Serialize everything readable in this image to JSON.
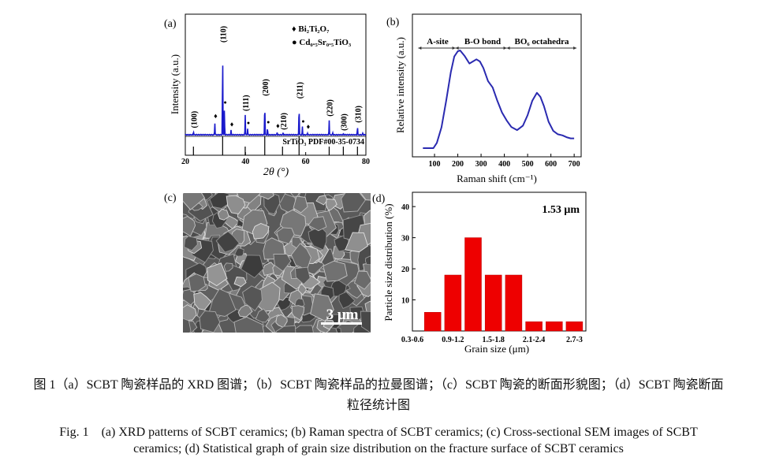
{
  "panels": {
    "a": {
      "label": "(a)",
      "ylabel": "Intensity (a.u.)",
      "xlabel": "2θ (°)",
      "legend": [
        {
          "symbol": "♦",
          "text": "Bi₂Ti₂O₇"
        },
        {
          "symbol": "●",
          "text": "Cd₀.₅Sr₀.₅TiO₃"
        }
      ],
      "reference_label": "SrTiO₃ PDF#00-35-0734"
    },
    "b": {
      "label": "(b)",
      "ylabel": "Relative intensity (a.u.)",
      "xlabel": "Raman shift (cm⁻¹)",
      "regions": [
        "A-site",
        "B-O bond",
        "BO₆ octahedra"
      ]
    },
    "c": {
      "label": "(c)",
      "scale_bar": "3 μm"
    },
    "d": {
      "label": "(d)",
      "ylabel": "Particle size distribution (%)",
      "xlabel": "Grain size (μm)",
      "annotation": "1.53 μm"
    }
  },
  "chart_data": [
    {
      "type": "line",
      "panel": "a",
      "title": "XRD pattern",
      "xlabel": "2θ (°)",
      "ylabel": "Intensity (a.u.)",
      "xlim": [
        20,
        80
      ],
      "xticks": [
        20,
        40,
        60,
        80
      ],
      "peaks": [
        {
          "x": 22.7,
          "y": 4,
          "hkl": "(100)"
        },
        {
          "x": 29.8,
          "y": 14,
          "marker": "♦"
        },
        {
          "x": 32.4,
          "y": 100,
          "hkl": "(110)"
        },
        {
          "x": 33.0,
          "y": 30,
          "marker": "●"
        },
        {
          "x": 35.2,
          "y": 5,
          "marker": "♦"
        },
        {
          "x": 39.9,
          "y": 23,
          "hkl": "(111)"
        },
        {
          "x": 40.7,
          "y": 7,
          "marker": "●"
        },
        {
          "x": 46.4,
          "y": 40,
          "hkl": "(200)"
        },
        {
          "x": 47.3,
          "y": 8,
          "marker": "●"
        },
        {
          "x": 50.5,
          "y": 3,
          "marker": "♦"
        },
        {
          "x": 52.5,
          "y": 2,
          "hkl": "(210)"
        },
        {
          "x": 57.8,
          "y": 37,
          "hkl": "(211)"
        },
        {
          "x": 58.9,
          "y": 9,
          "marker": "●"
        },
        {
          "x": 60.6,
          "y": 2,
          "marker": "♦"
        },
        {
          "x": 67.8,
          "y": 17,
          "hkl": "(220)"
        },
        {
          "x": 69.0,
          "y": 2
        },
        {
          "x": 72.5,
          "y": 1,
          "hkl": "(300)"
        },
        {
          "x": 77.2,
          "y": 10,
          "hkl": "(310)"
        },
        {
          "x": 79.0,
          "y": 2
        }
      ],
      "reference_lines": [
        22.7,
        32.4,
        39.9,
        46.4,
        52.3,
        57.8,
        67.8,
        72.5,
        77.2
      ],
      "color": "#1a1acc"
    },
    {
      "type": "line",
      "panel": "b",
      "title": "Raman spectrum",
      "xlabel": "Raman shift (cm⁻¹)",
      "ylabel": "Relative intensity (a.u.)",
      "xlim": [
        5,
        730
      ],
      "xticks": [
        100,
        200,
        300,
        400,
        500,
        600,
        700
      ],
      "x": [
        50,
        70,
        95,
        110,
        130,
        150,
        170,
        185,
        200,
        210,
        230,
        250,
        265,
        280,
        295,
        310,
        330,
        350,
        370,
        390,
        410,
        430,
        455,
        480,
        500,
        520,
        540,
        555,
        570,
        590,
        610,
        630,
        650,
        670,
        685,
        700
      ],
      "y": [
        0,
        0,
        0,
        0.054,
        0.214,
        0.483,
        0.777,
        0.938,
        0.992,
        1.0,
        0.941,
        0.866,
        0.887,
        0.909,
        0.887,
        0.82,
        0.686,
        0.62,
        0.485,
        0.365,
        0.284,
        0.217,
        0.185,
        0.231,
        0.338,
        0.485,
        0.566,
        0.525,
        0.431,
        0.27,
        0.177,
        0.142,
        0.131,
        0.11,
        0.1,
        0.1
      ],
      "region_bounds": [
        [
          30,
          190
        ],
        [
          190,
          410
        ],
        [
          410,
          710
        ]
      ],
      "color": "#2a2ab0"
    },
    {
      "type": "bar",
      "panel": "d",
      "xlabel": "Grain size (μm)",
      "ylabel": "Particle size distribution (%)",
      "x": [
        0.75,
        1.05,
        1.35,
        1.65,
        1.95,
        2.25,
        2.55,
        2.85
      ],
      "values": [
        6,
        18,
        30,
        18,
        18,
        3,
        3,
        3
      ],
      "xticks": [
        {
          "x": 0.45,
          "label": "0.3-0.6"
        },
        {
          "x": 1.05,
          "label": "0.9-1.2"
        },
        {
          "x": 1.65,
          "label": "1.5-1.8"
        },
        {
          "x": 2.25,
          "label": "2.1-2.4"
        },
        {
          "x": 2.85,
          "label": "2.7-3"
        }
      ],
      "yticks": [
        10,
        20,
        30,
        40
      ],
      "xlim": [
        0.45,
        3.02
      ],
      "ylim": [
        0,
        44.6
      ],
      "color": "#ee0000"
    }
  ],
  "caption": {
    "cn_line1": "图 1（a）SCBT 陶瓷样品的 XRD 图谱；（b）SCBT 陶瓷样品的拉曼图谱；（c）SCBT 陶瓷的断面形貌图；（d）SCBT 陶瓷断面",
    "cn_line2": "粒径统计图",
    "en_line1": "Fig. 1　(a) XRD patterns of SCBT ceramics; (b) Raman spectra of SCBT ceramics; (c) Cross-sectional SEM images of SCBT",
    "en_line2": "ceramics; (d) Statistical graph of grain size distribution on the fracture surface of SCBT ceramics"
  }
}
